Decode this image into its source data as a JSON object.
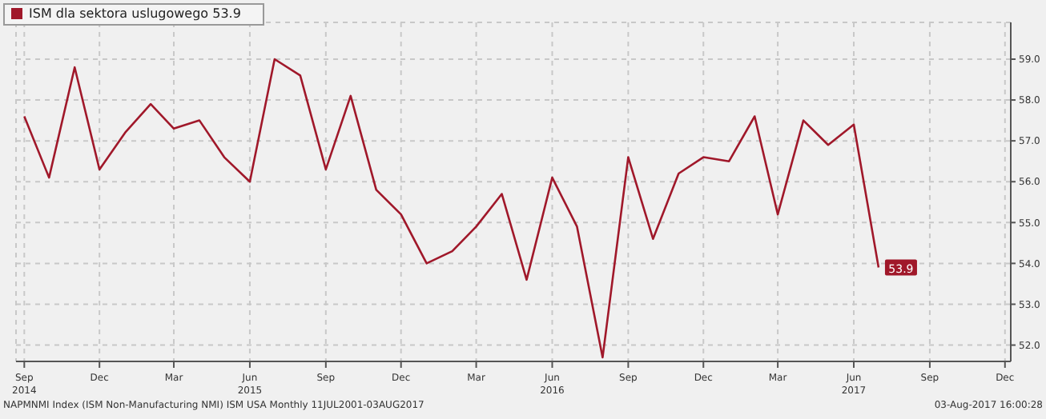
{
  "chart_data": {
    "type": "line",
    "x": [
      "2014-09",
      "2014-10",
      "2014-11",
      "2014-12",
      "2015-01",
      "2015-02",
      "2015-03",
      "2015-04",
      "2015-05",
      "2015-06",
      "2015-07",
      "2015-08",
      "2015-09",
      "2015-10",
      "2015-11",
      "2015-12",
      "2016-01",
      "2016-02",
      "2016-03",
      "2016-04",
      "2016-05",
      "2016-06",
      "2016-07",
      "2016-08",
      "2016-09",
      "2016-10",
      "2016-11",
      "2016-12",
      "2017-01",
      "2017-02",
      "2017-03",
      "2017-04",
      "2017-05",
      "2017-06",
      "2017-07"
    ],
    "series": [
      {
        "name": "ISM dla sektora uslugowego 53.9",
        "color": "#a0182a",
        "values": [
          57.6,
          56.1,
          58.8,
          56.3,
          57.2,
          57.9,
          57.3,
          57.5,
          56.6,
          56.0,
          59.0,
          58.6,
          56.3,
          58.1,
          55.8,
          55.2,
          54.0,
          54.3,
          54.9,
          55.7,
          53.6,
          56.1,
          54.9,
          51.7,
          56.6,
          54.6,
          56.2,
          56.6,
          56.5,
          57.6,
          55.2,
          57.5,
          56.9,
          57.4,
          53.9
        ],
        "value_labels": [
          null,
          null,
          null,
          null,
          null,
          null,
          null,
          null,
          null,
          null,
          null,
          null,
          null,
          null,
          null,
          null,
          null,
          null,
          null,
          null,
          null,
          null,
          null,
          null,
          null,
          null,
          null,
          null,
          null,
          null,
          null,
          null,
          null,
          null,
          "53.9"
        ]
      }
    ],
    "xlim": [
      "2014-08-22",
      "2017-12-08"
    ],
    "xticks": [
      {
        "value": "2014-09",
        "label": "Sep\n2014"
      },
      {
        "value": "2014-12",
        "label": "Dec"
      },
      {
        "value": "2015-03",
        "label": "Mar"
      },
      {
        "value": "2015-06",
        "label": "Jun\n2015"
      },
      {
        "value": "2015-09",
        "label": "Sep"
      },
      {
        "value": "2015-12",
        "label": "Dec"
      },
      {
        "value": "2016-03",
        "label": "Mar"
      },
      {
        "value": "2016-06",
        "label": "Jun\n2016"
      },
      {
        "value": "2016-09",
        "label": "Sep"
      },
      {
        "value": "2016-12",
        "label": "Dec"
      },
      {
        "value": "2017-03",
        "label": "Mar"
      },
      {
        "value": "2017-06",
        "label": "Jun\n2017"
      },
      {
        "value": "2017-09",
        "label": "Sep"
      },
      {
        "value": "2017-12",
        "label": "Dec"
      }
    ],
    "ylim": [
      51.6,
      59.9
    ],
    "yticks": [
      {
        "value": 52,
        "label": "52.0"
      },
      {
        "value": 53,
        "label": "53.0"
      },
      {
        "value": 54,
        "label": "54.0"
      },
      {
        "value": 55,
        "label": "55.0"
      },
      {
        "value": 56,
        "label": "56.0"
      },
      {
        "value": 57,
        "label": "57.0"
      },
      {
        "value": 58,
        "label": "58.0"
      },
      {
        "value": 59,
        "label": "59.0"
      }
    ],
    "grid": true,
    "legend": "top left",
    "marker": "none",
    "line_style": "solid",
    "annotations": [
      "NAPMNMI Index (ISM Non-Manufacturing NMI) ISM USA  Monthly 11JUL2001-03AUG2017",
      "03-Aug-2017 16:00:28"
    ]
  }
}
